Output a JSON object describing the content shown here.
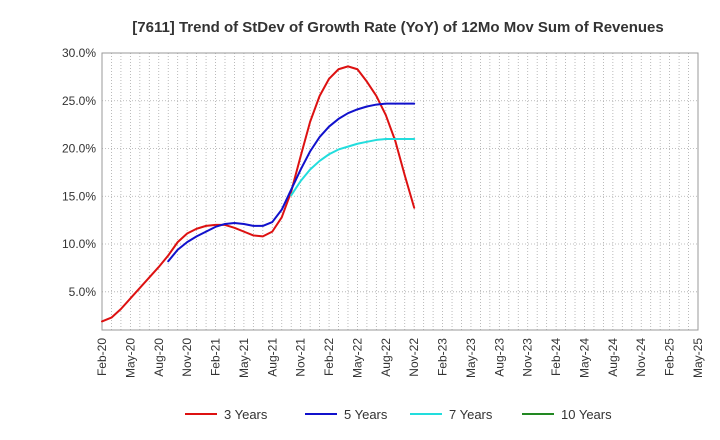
{
  "chart_data": {
    "type": "line",
    "title": "[7611]  Trend of StDev of Growth Rate (YoY) of 12Mo Mov Sum of Revenues",
    "xlabel": "",
    "ylabel": "",
    "ylim": [
      1.0,
      30.0
    ],
    "yticks": [
      5.0,
      10.0,
      15.0,
      20.0,
      25.0,
      30.0
    ],
    "ytick_labels": [
      "5.0%",
      "10.0%",
      "15.0%",
      "20.0%",
      "25.0%",
      "30.0%"
    ],
    "xtick_labels": [
      "Feb-20",
      "May-20",
      "Aug-20",
      "Nov-20",
      "Feb-21",
      "May-21",
      "Aug-21",
      "Nov-21",
      "Feb-22",
      "May-22",
      "Aug-22",
      "Nov-22",
      "Feb-23",
      "May-23",
      "Aug-23",
      "Nov-23",
      "Feb-24",
      "May-24",
      "Aug-24",
      "Nov-24",
      "Feb-25",
      "May-25"
    ],
    "grid": true,
    "legend_position": "bottom",
    "series": [
      {
        "name": "3 Years",
        "color": "#dd1111",
        "points": [
          [
            0,
            1.9
          ],
          [
            1,
            2.3
          ],
          [
            2,
            3.2
          ],
          [
            3,
            4.3
          ],
          [
            4,
            5.4
          ],
          [
            5,
            6.5
          ],
          [
            6,
            7.6
          ],
          [
            7,
            8.8
          ],
          [
            8,
            10.2
          ],
          [
            9,
            11.1
          ],
          [
            10,
            11.6
          ],
          [
            11,
            11.9
          ],
          [
            12,
            12.0
          ],
          [
            13,
            12.0
          ],
          [
            14,
            11.7
          ],
          [
            15,
            11.3
          ],
          [
            16,
            10.9
          ],
          [
            17,
            10.8
          ],
          [
            18,
            11.3
          ],
          [
            19,
            12.8
          ],
          [
            20,
            15.5
          ],
          [
            21,
            19.2
          ],
          [
            22,
            22.8
          ],
          [
            23,
            25.5
          ],
          [
            24,
            27.3
          ],
          [
            25,
            28.3
          ],
          [
            26,
            28.6
          ],
          [
            27,
            28.3
          ],
          [
            28,
            27.0
          ],
          [
            29,
            25.5
          ],
          [
            30,
            23.5
          ],
          [
            31,
            20.8
          ],
          [
            32,
            17.2
          ],
          [
            33,
            13.8
          ]
        ]
      },
      {
        "name": "5 Years",
        "color": "#1111cc",
        "points": [
          [
            7,
            8.2
          ],
          [
            8,
            9.4
          ],
          [
            9,
            10.2
          ],
          [
            10,
            10.8
          ],
          [
            11,
            11.3
          ],
          [
            12,
            11.8
          ],
          [
            13,
            12.1
          ],
          [
            14,
            12.2
          ],
          [
            15,
            12.1
          ],
          [
            16,
            11.9
          ],
          [
            17,
            11.9
          ],
          [
            18,
            12.3
          ],
          [
            19,
            13.6
          ],
          [
            20,
            15.7
          ],
          [
            21,
            17.8
          ],
          [
            22,
            19.7
          ],
          [
            23,
            21.2
          ],
          [
            24,
            22.3
          ],
          [
            25,
            23.1
          ],
          [
            26,
            23.7
          ],
          [
            27,
            24.1
          ],
          [
            28,
            24.4
          ],
          [
            29,
            24.6
          ],
          [
            30,
            24.7
          ],
          [
            31,
            24.7
          ],
          [
            32,
            24.7
          ],
          [
            33,
            24.7
          ]
        ]
      },
      {
        "name": "7 Years",
        "color": "#22dddd",
        "points": [
          [
            20,
            15.1
          ],
          [
            21,
            16.6
          ],
          [
            22,
            17.8
          ],
          [
            23,
            18.7
          ],
          [
            24,
            19.4
          ],
          [
            25,
            19.9
          ],
          [
            26,
            20.2
          ],
          [
            27,
            20.5
          ],
          [
            28,
            20.7
          ],
          [
            29,
            20.9
          ],
          [
            30,
            21.0
          ],
          [
            31,
            21.0
          ],
          [
            32,
            21.0
          ],
          [
            33,
            21.0
          ]
        ]
      },
      {
        "name": "10 Years",
        "color": "#228822",
        "points": []
      }
    ]
  }
}
